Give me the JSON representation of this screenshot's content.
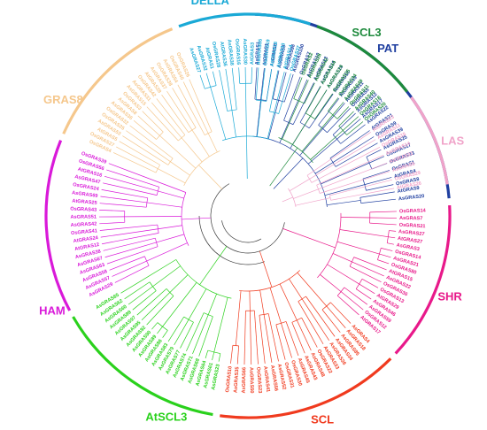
{
  "clades": [
    {
      "name": "PAT",
      "color": "#1f3fa0",
      "leaves": [
        "AsGRAS1",
        "AtGRAS1",
        "AsGRAS6",
        "AsGRAS9",
        "AsGRAS98",
        "AsGRAS100",
        "OsGRAS7",
        "AsGRAS10",
        "AsGRAS13",
        "AsGRAS16",
        "AsGRAS19",
        "AtGRAS18",
        "AtGRAS19",
        "AtGRAS11",
        "OsGRAS5",
        "AsGRAS12",
        "AsGRAS17",
        "AsGRAS22",
        "AtGRAS21",
        "OsGRAS9",
        "AsGRAS39",
        "AsGRAS25",
        "OsGRAS17",
        "OsGRAS33",
        "OsGRAS1",
        "AtGRAS4",
        "OsGRAS8",
        "AtGRAS9",
        "AsGRAS20"
      ]
    },
    {
      "name": "SHR",
      "color": "#e8198a",
      "leaves": [
        "OsGRAS14",
        "AsGRAS7",
        "OsGRAS21",
        "AsGRAS27",
        "AtGRAS27",
        "AsGRAS3",
        "OsGRAS14",
        "AsGRAS21",
        "OsGRAS80",
        "AtGRAS15",
        "AsGRAS22",
        "OsGRAS36",
        "OsGRAS13",
        "AtGRAS29",
        "AsGRAS46",
        "AsGRAS59",
        "OsGRAS12",
        "AtGRAS17"
      ]
    },
    {
      "name": "SCL",
      "color": "#f03a1e",
      "leaves": [
        "AsGRAS4",
        "AsGRAS18",
        "AsGRAS85",
        "AsGRAS34",
        "AsGRAS26",
        "AsGRAS33",
        "OsGRAS22",
        "AsGRAS48",
        "AsGRAS43",
        "AsGRAS45",
        "OsGRAS30",
        "OsGRAS31",
        "AsGRAS52",
        "AsGRAS56",
        "AsGRAS41",
        "OsGRAS23",
        "AsGRAS50",
        "AsGRAS66",
        "AsGRAS35",
        "OsGRAS10"
      ]
    },
    {
      "name": "AtSCL3",
      "color": "#2ad11c",
      "leaves": [
        "AsGRAS23",
        "AsGRAS61",
        "AsGRAS64",
        "AsGRAS68",
        "AsGRAS71",
        "AsGRAS74",
        "AsGRAS77",
        "AsGRAS79",
        "AsGRAS83",
        "AsGRAS86",
        "AsGRAS89",
        "AsGRAS90",
        "AsGRAS92",
        "AsGRAS95",
        "AsGRAS97",
        "AsGRAS99",
        "AsGRAS60",
        "AsGRAS62",
        "AsGRAS65"
      ]
    },
    {
      "name": "HAM",
      "color": "#d919d9",
      "leaves": [
        "AsGRAS29",
        "AsGRAS57",
        "AsGRAS58",
        "AsGRAS63",
        "AsGRAS67",
        "AsGRAS38",
        "AtGRAS12",
        "AtGRAS24",
        "OsGRAS41",
        "AsGRAS42",
        "AsGRAS51",
        "OsGRAS43",
        "AtGRAS25",
        "AsGRAS69",
        "OsGRAS24",
        "AsGRAS47",
        "AtGRAS16",
        "OsGRAS56",
        "OsGRAS39"
      ]
    },
    {
      "name": "GRAS8",
      "color": "#f5c78c",
      "leaves": [
        "OsGRAS4",
        "OsGRAS27",
        "AtGRAS5",
        "AsGRAS53",
        "OsGRAS25",
        "OsGRAS32",
        "AsGRAS36",
        "AsGRAS8",
        "OsGRAS3",
        "AsGRAS15",
        "AsGRAS31",
        "OsGRAS42",
        "AtGRAS28",
        "AsGRAS37",
        "OsGRAS38",
        "AsGRAS54",
        "OsGRAS40",
        "OsGRAS26"
      ]
    },
    {
      "name": "DELLA",
      "color": "#1aa9d6",
      "leaves": [
        "AsGRAS27",
        "AsGRAS32",
        "AtGRAS1",
        "OsGRAS28",
        "AtGRAS36",
        "AsGRAS38",
        "OsGRAS16",
        "AsGRAS30",
        "AtGRAS3",
        "AsGRAS55",
        "OsGRAS19",
        "AtGRAS18",
        "AtGRAS33",
        "AtGRAS14",
        "OsGRAS37"
      ]
    },
    {
      "name": "SCL3",
      "color": "#1d8a3c",
      "leaves": [
        "OsGRAS2",
        "AsGRAS28",
        "AtGRAS42",
        "AsGRAS44",
        "AsGRAS24",
        "OsGRAS35",
        "OsGRAS34",
        "AsGRAS49",
        "OsGRAS11",
        "AsGRAS40",
        "OsGRAS18",
        "OsGRAS20"
      ]
    },
    {
      "name": "LAS",
      "color": "#f0a3c9",
      "leaves": [
        "AtGRAS23",
        "AsGRAS11",
        "OsGRAS15",
        "AsGRAS14",
        "AtGRAS22",
        "AsGRAS5",
        "OsGRAS29",
        "AtGRAS26"
      ]
    }
  ],
  "backbone_color": "#3a3a3a"
}
